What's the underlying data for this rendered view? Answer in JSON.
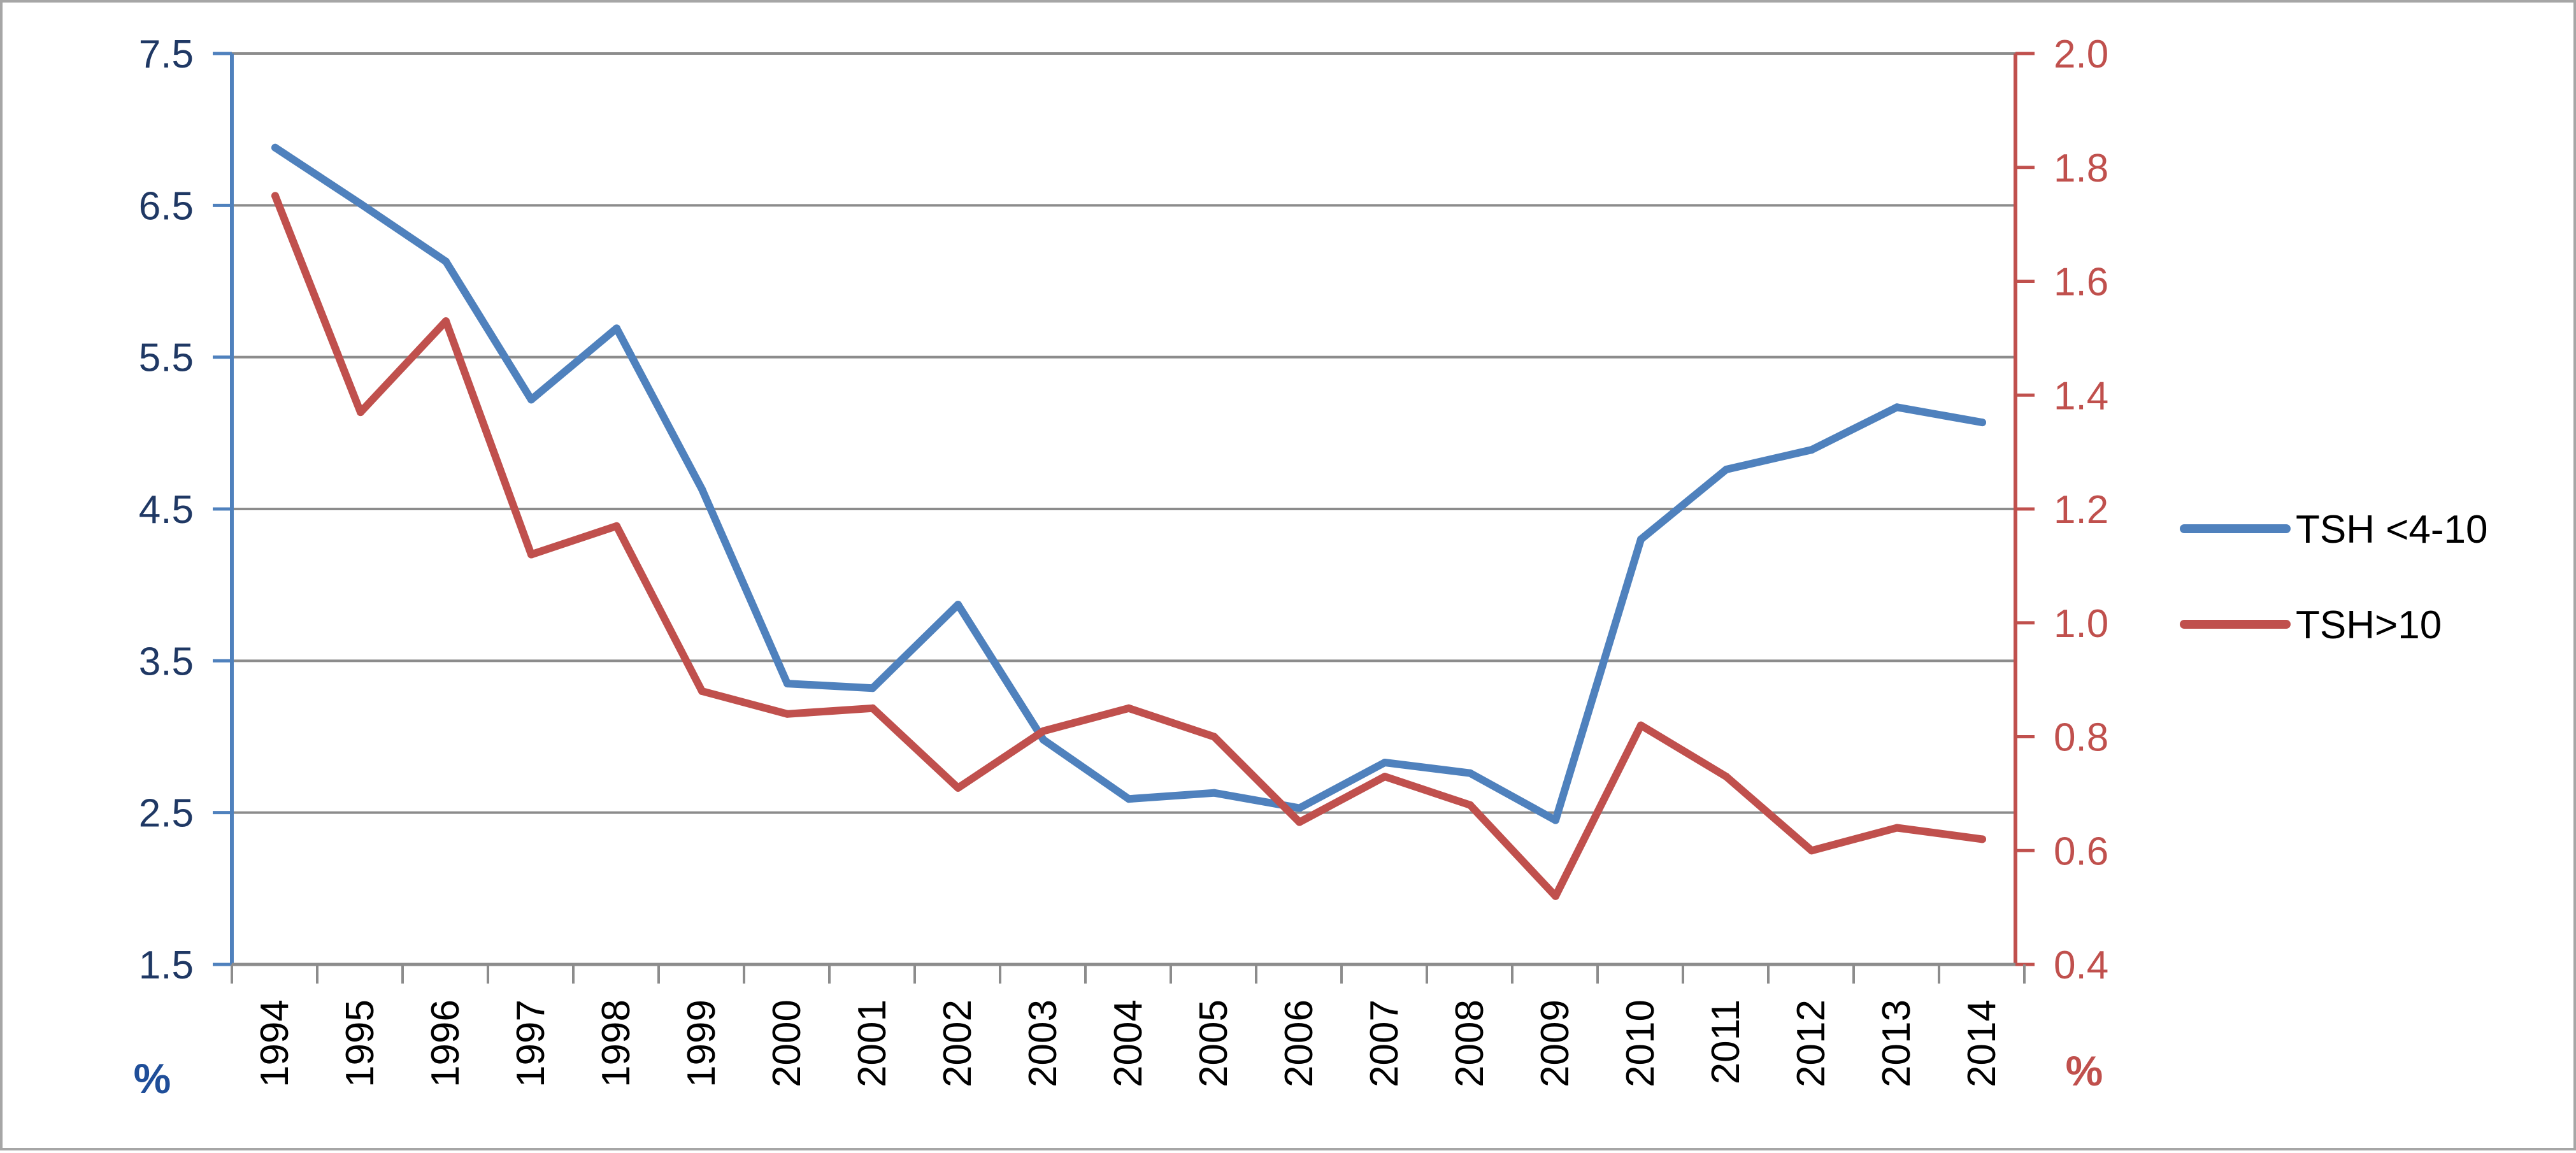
{
  "chart_data": {
    "type": "line",
    "x": [
      "1994",
      "1995",
      "1996",
      "1997",
      "1998",
      "1999",
      "2000",
      "2001",
      "2002",
      "2003",
      "2004",
      "2005",
      "2006",
      "2007",
      "2008",
      "2009",
      "2010",
      "2011",
      "2012",
      "2013",
      "2014"
    ],
    "series": [
      {
        "name": "TSH <4-10",
        "axis": "left",
        "color": "#4f81bd",
        "values": [
          6.88,
          6.51,
          6.13,
          5.22,
          5.69,
          4.63,
          3.35,
          3.32,
          3.87,
          2.98,
          2.59,
          2.63,
          2.53,
          2.83,
          2.76,
          2.45,
          4.3,
          4.76,
          4.89,
          5.17,
          5.07
        ]
      },
      {
        "name": "TSH>10",
        "axis": "right",
        "color": "#c0504d",
        "values": [
          1.75,
          1.37,
          1.53,
          1.12,
          1.17,
          0.88,
          0.84,
          0.85,
          0.71,
          0.81,
          0.85,
          0.8,
          0.65,
          0.73,
          0.68,
          0.52,
          0.82,
          0.73,
          0.6,
          0.64,
          0.62
        ]
      }
    ],
    "y_left": {
      "ylim": [
        1.5,
        7.5
      ],
      "ticks": [
        "1.5",
        "2.5",
        "3.5",
        "4.5",
        "5.5",
        "6.5",
        "7.5"
      ],
      "unit": "%"
    },
    "y_right": {
      "ylim": [
        0.4,
        2.0
      ],
      "ticks": [
        "0.4",
        "0.6",
        "0.8",
        "1.0",
        "1.2",
        "1.4",
        "1.6",
        "1.8",
        "2.0"
      ],
      "unit": "%"
    },
    "grid": true,
    "legend_position": "right",
    "axis_colors": {
      "left": "#4f81bd",
      "right": "#c0504d",
      "left_text": "#1f3864",
      "right_text": "#c0504d"
    }
  }
}
